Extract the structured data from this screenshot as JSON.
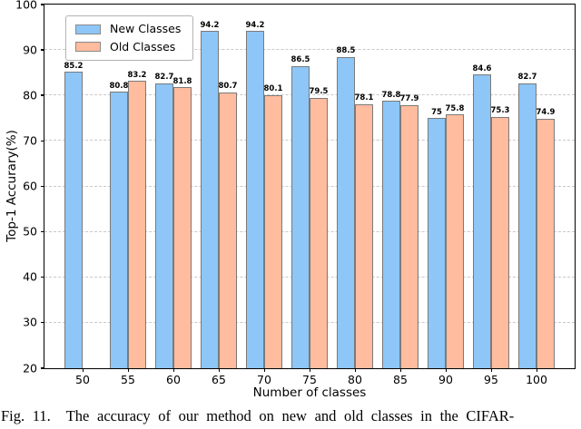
{
  "chart_data": {
    "type": "bar",
    "title": "",
    "xlabel": "Number of classes",
    "ylabel": "Top-1 Accurary(%)",
    "ylim": [
      20,
      100
    ],
    "yticks": [
      20,
      30,
      40,
      50,
      60,
      70,
      80,
      90,
      100
    ],
    "categories": [
      "50",
      "55",
      "60",
      "65",
      "70",
      "75",
      "80",
      "85",
      "90",
      "95",
      "100"
    ],
    "series": [
      {
        "name": "New Classes",
        "color": "#8dc6f7",
        "values": [
          85.2,
          80.8,
          82.7,
          94.2,
          94.2,
          86.5,
          88.5,
          78.8,
          75,
          84.6,
          82.7
        ]
      },
      {
        "name": "Old Classes",
        "color": "#ffbc9e",
        "values": [
          null,
          83.2,
          81.8,
          80.7,
          80.1,
          79.5,
          78.1,
          77.9,
          75.8,
          75.3,
          74.9
        ]
      }
    ],
    "grid": "horizontal-dashed",
    "legend_position": "upper-left",
    "bar_edge_color": "#7a7a7a"
  },
  "caption": "Fig. 11.  The accuracy of our method on new and old classes in the CIFAR-"
}
